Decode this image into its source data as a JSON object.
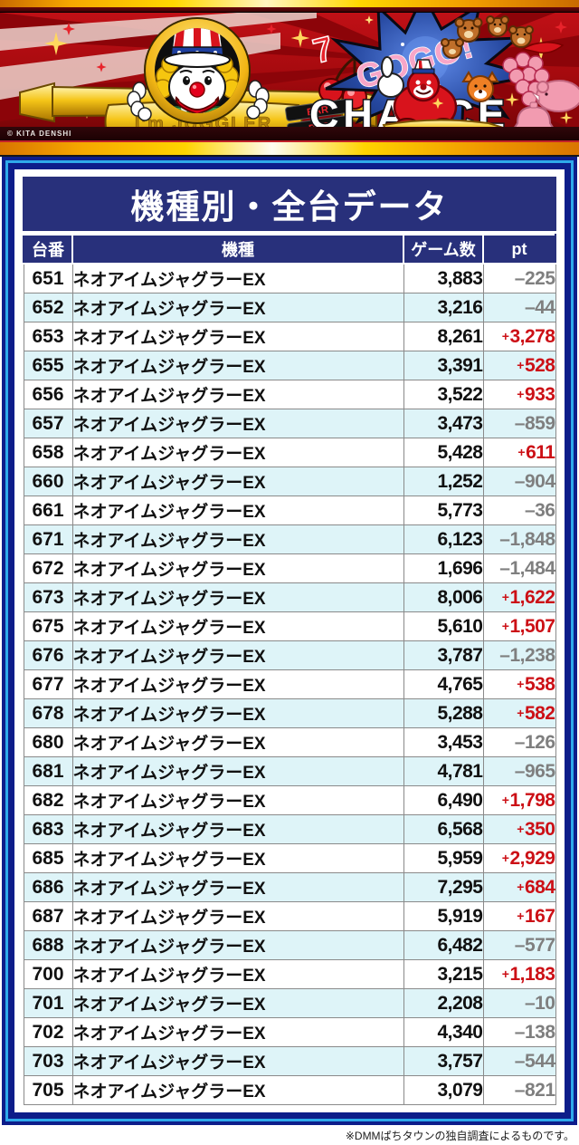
{
  "banner": {
    "copyright": "© KITA DENSHI",
    "im_juggler": "I'm JUGGLER",
    "gogo": "GOGO!",
    "chance": "CHANCE",
    "bar": "BAR",
    "seven": "7"
  },
  "title": "機種別・全台データ",
  "table": {
    "headers": [
      "台番",
      "機種",
      "ゲーム数",
      "pt"
    ],
    "rows": [
      {
        "no": "651",
        "model": "ネオアイムジャグラーEX",
        "games": "3,883",
        "pt": "-225"
      },
      {
        "no": "652",
        "model": "ネオアイムジャグラーEX",
        "games": "3,216",
        "pt": "-44"
      },
      {
        "no": "653",
        "model": "ネオアイムジャグラーEX",
        "games": "8,261",
        "pt": "+3,278"
      },
      {
        "no": "655",
        "model": "ネオアイムジャグラーEX",
        "games": "3,391",
        "pt": "+528"
      },
      {
        "no": "656",
        "model": "ネオアイムジャグラーEX",
        "games": "3,522",
        "pt": "+933"
      },
      {
        "no": "657",
        "model": "ネオアイムジャグラーEX",
        "games": "3,473",
        "pt": "-859"
      },
      {
        "no": "658",
        "model": "ネオアイムジャグラーEX",
        "games": "5,428",
        "pt": "+611"
      },
      {
        "no": "660",
        "model": "ネオアイムジャグラーEX",
        "games": "1,252",
        "pt": "-904"
      },
      {
        "no": "661",
        "model": "ネオアイムジャグラーEX",
        "games": "5,773",
        "pt": "-36"
      },
      {
        "no": "671",
        "model": "ネオアイムジャグラーEX",
        "games": "6,123",
        "pt": "-1,848"
      },
      {
        "no": "672",
        "model": "ネオアイムジャグラーEX",
        "games": "1,696",
        "pt": "-1,484"
      },
      {
        "no": "673",
        "model": "ネオアイムジャグラーEX",
        "games": "8,006",
        "pt": "+1,622"
      },
      {
        "no": "675",
        "model": "ネオアイムジャグラーEX",
        "games": "5,610",
        "pt": "+1,507"
      },
      {
        "no": "676",
        "model": "ネオアイムジャグラーEX",
        "games": "3,787",
        "pt": "-1,238"
      },
      {
        "no": "677",
        "model": "ネオアイムジャグラーEX",
        "games": "4,765",
        "pt": "+538"
      },
      {
        "no": "678",
        "model": "ネオアイムジャグラーEX",
        "games": "5,288",
        "pt": "+582"
      },
      {
        "no": "680",
        "model": "ネオアイムジャグラーEX",
        "games": "3,453",
        "pt": "-126"
      },
      {
        "no": "681",
        "model": "ネオアイムジャグラーEX",
        "games": "4,781",
        "pt": "-965"
      },
      {
        "no": "682",
        "model": "ネオアイムジャグラーEX",
        "games": "6,490",
        "pt": "+1,798"
      },
      {
        "no": "683",
        "model": "ネオアイムジャグラーEX",
        "games": "6,568",
        "pt": "+350"
      },
      {
        "no": "685",
        "model": "ネオアイムジャグラーEX",
        "games": "5,959",
        "pt": "+2,929"
      },
      {
        "no": "686",
        "model": "ネオアイムジャグラーEX",
        "games": "7,295",
        "pt": "+684"
      },
      {
        "no": "687",
        "model": "ネオアイムジャグラーEX",
        "games": "5,919",
        "pt": "+167"
      },
      {
        "no": "688",
        "model": "ネオアイムジャグラーEX",
        "games": "6,482",
        "pt": "-577"
      },
      {
        "no": "700",
        "model": "ネオアイムジャグラーEX",
        "games": "3,215",
        "pt": "+1,183"
      },
      {
        "no": "701",
        "model": "ネオアイムジャグラーEX",
        "games": "2,208",
        "pt": "-10"
      },
      {
        "no": "702",
        "model": "ネオアイムジャグラーEX",
        "games": "4,340",
        "pt": "-138"
      },
      {
        "no": "703",
        "model": "ネオアイムジャグラーEX",
        "games": "3,757",
        "pt": "-544"
      },
      {
        "no": "705",
        "model": "ネオアイムジャグラーEX",
        "games": "3,079",
        "pt": "-821"
      }
    ]
  },
  "footer": {
    "note": "※DMMぱちタウンの独自調査によるものです。"
  },
  "colors": {
    "positive_pt": "#cc1016",
    "negative_pt": "#7f7f7f",
    "header_bg": "#28307b",
    "row_alt_bg": "#def4f8",
    "panel_navy": "#0d1d8a",
    "panel_stripe_blue": "#2ea9ea",
    "banner_red": "#a50a0e",
    "gold": "#ffd400"
  }
}
